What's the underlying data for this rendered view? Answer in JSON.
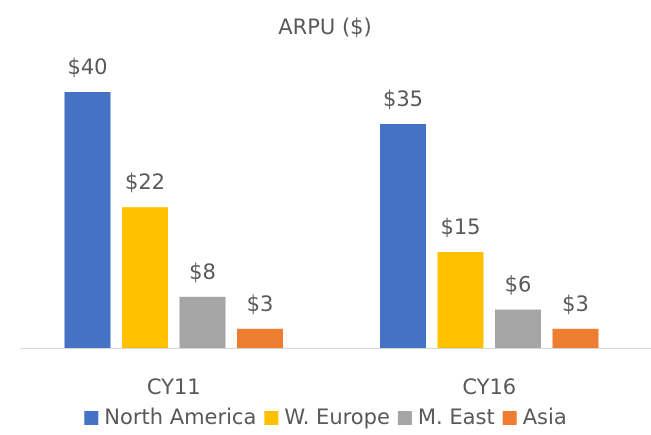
{
  "chart_data": {
    "type": "bar",
    "title": "ARPU ($)",
    "categories": [
      "CY11",
      "CY16"
    ],
    "series": [
      {
        "name": "North America",
        "color": "#4472c4",
        "values": [
          40,
          35
        ],
        "value_labels": [
          "$40",
          "$35"
        ]
      },
      {
        "name": "W. Europe",
        "color": "#ffc000",
        "values": [
          22,
          15
        ],
        "value_labels": [
          "$22",
          "$15"
        ]
      },
      {
        "name": "M. East",
        "color": "#a5a5a5",
        "values": [
          8,
          6
        ],
        "value_labels": [
          "$8",
          "$6"
        ]
      },
      {
        "name": "Asia",
        "color": "#ed7d31",
        "values": [
          3,
          3
        ],
        "value_labels": [
          "$3",
          "$3"
        ]
      }
    ],
    "legend": "bottom"
  }
}
